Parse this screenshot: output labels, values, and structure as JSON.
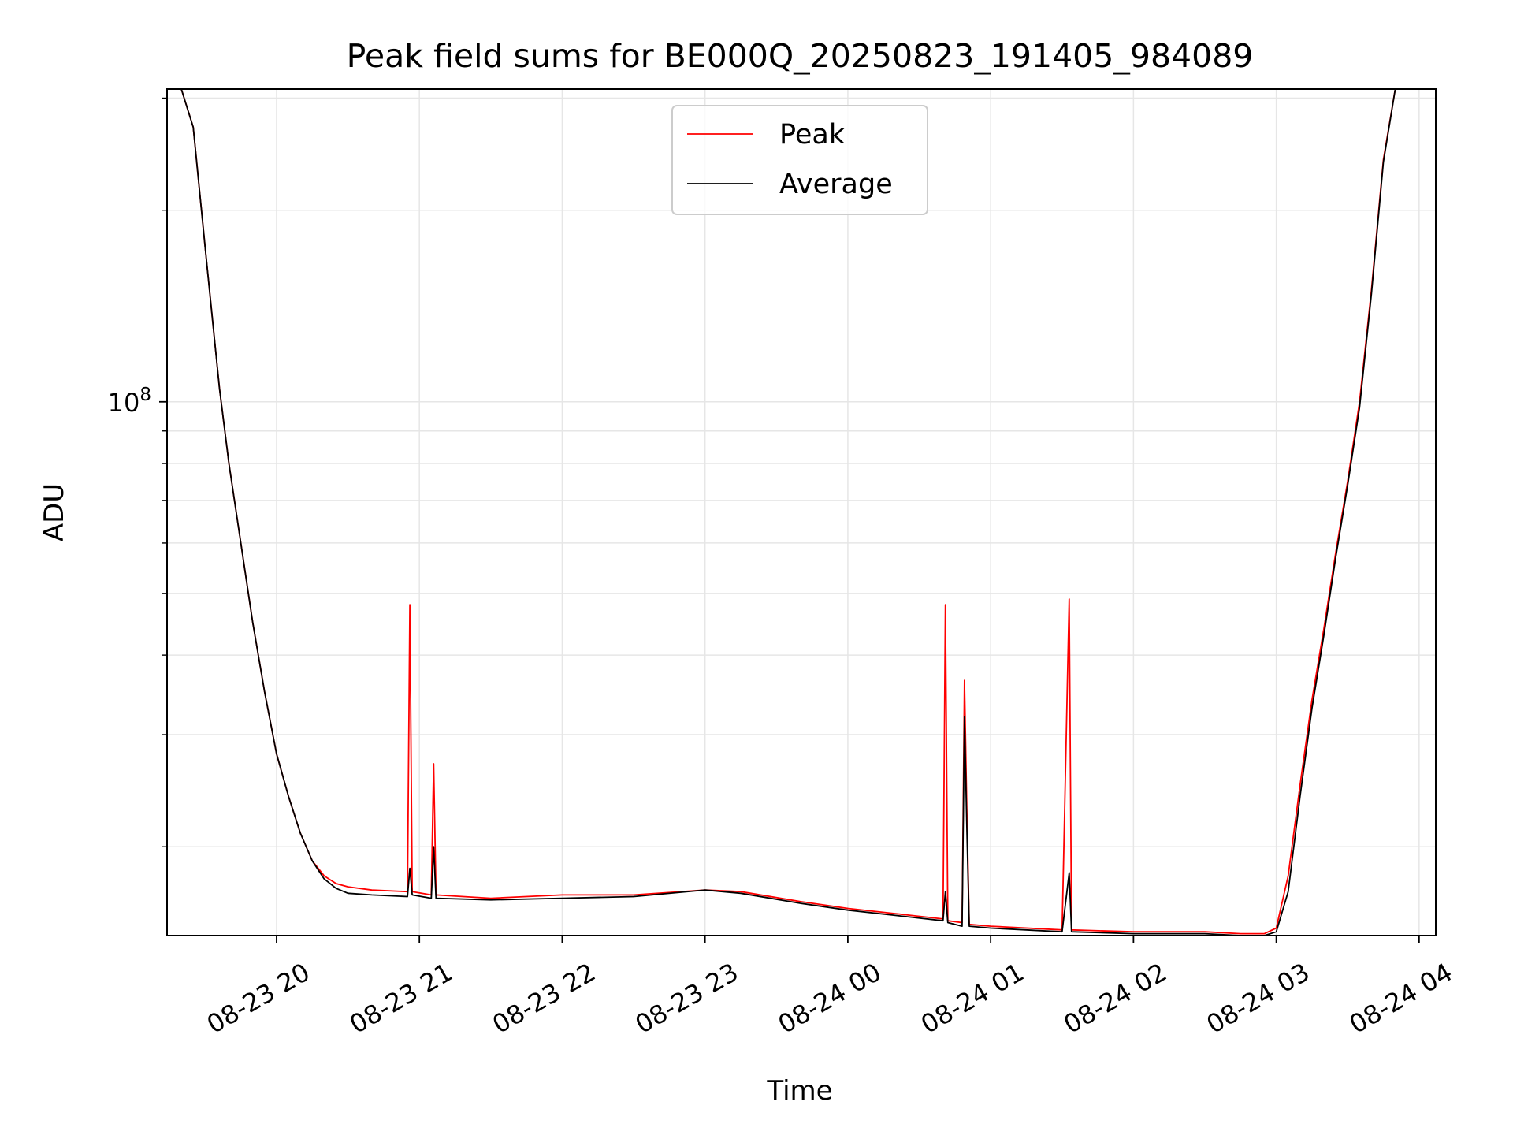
{
  "chart_data": {
    "type": "line",
    "title": "Peak field sums for BE000Q_20250823_191405_984089",
    "xlabel": "Time",
    "ylabel": "ADU",
    "y_scale": "log",
    "ylim": [
      14500000,
      310000000
    ],
    "xlim": [
      "2025-08-23 19:14",
      "2025-08-24 04:07"
    ],
    "grid": true,
    "legend_position": "top-center",
    "x_ticks": [
      "08-23 20",
      "08-23 21",
      "08-23 22",
      "08-23 23",
      "08-24 00",
      "08-24 01",
      "08-24 02",
      "08-24 03",
      "08-24 04"
    ],
    "y_major_ticks": [
      {
        "value": 100000000,
        "base": "10",
        "exp": "8"
      }
    ],
    "series": [
      {
        "name": "Peak",
        "color": "#ff0000",
        "x": [
          "2025-08-23 19:14",
          "2025-08-23 19:20",
          "2025-08-23 19:25",
          "2025-08-23 19:30",
          "2025-08-23 19:36",
          "2025-08-23 19:40",
          "2025-08-23 19:45",
          "2025-08-23 19:50",
          "2025-08-23 19:55",
          "2025-08-23 20:00",
          "2025-08-23 20:05",
          "2025-08-23 20:10",
          "2025-08-23 20:15",
          "2025-08-23 20:20",
          "2025-08-23 20:25",
          "2025-08-23 20:30",
          "2025-08-23 20:40",
          "2025-08-23 20:55",
          "2025-08-23 20:56",
          "2025-08-23 20:57",
          "2025-08-23 21:05",
          "2025-08-23 21:06",
          "2025-08-23 21:07",
          "2025-08-23 21:30",
          "2025-08-23 22:00",
          "2025-08-23 22:30",
          "2025-08-23 23:00",
          "2025-08-23 23:15",
          "2025-08-23 23:40",
          "2025-08-24 00:00",
          "2025-08-24 00:20",
          "2025-08-24 00:40",
          "2025-08-24 00:41",
          "2025-08-24 00:42",
          "2025-08-24 00:48",
          "2025-08-24 00:49",
          "2025-08-24 00:50",
          "2025-08-24 00:51",
          "2025-08-24 01:00",
          "2025-08-24 01:30",
          "2025-08-24 01:33",
          "2025-08-24 01:34",
          "2025-08-24 02:00",
          "2025-08-24 02:30",
          "2025-08-24 02:45",
          "2025-08-24 02:55",
          "2025-08-24 03:00",
          "2025-08-24 03:05",
          "2025-08-24 03:10",
          "2025-08-24 03:15",
          "2025-08-24 03:20",
          "2025-08-24 03:25",
          "2025-08-24 03:30",
          "2025-08-24 03:35",
          "2025-08-24 03:40",
          "2025-08-24 03:45",
          "2025-08-24 03:50",
          "2025-08-24 04:07"
        ],
        "y": [
          310000000,
          310000000,
          270000000,
          175000000,
          105000000,
          80000000,
          60000000,
          45000000,
          35000000,
          28000000,
          24000000,
          21000000,
          19000000,
          18000000,
          17500000,
          17300000,
          17100000,
          17000000,
          48000000,
          17000000,
          16800000,
          27000000,
          16800000,
          16600000,
          16800000,
          16800000,
          17100000,
          17000000,
          16400000,
          16000000,
          15700000,
          15400000,
          48000000,
          15300000,
          15200000,
          36500000,
          23000000,
          15100000,
          15000000,
          14800000,
          49000000,
          14800000,
          14700000,
          14700000,
          14600000,
          14600000,
          14900000,
          18000000,
          25000000,
          34000000,
          44000000,
          58000000,
          75000000,
          100000000,
          150000000,
          240000000,
          310000000,
          310000000
        ]
      },
      {
        "name": "Average",
        "color": "#000000",
        "x": [
          "2025-08-23 19:14",
          "2025-08-23 19:20",
          "2025-08-23 19:25",
          "2025-08-23 19:30",
          "2025-08-23 19:36",
          "2025-08-23 19:40",
          "2025-08-23 19:45",
          "2025-08-23 19:50",
          "2025-08-23 19:55",
          "2025-08-23 20:00",
          "2025-08-23 20:05",
          "2025-08-23 20:10",
          "2025-08-23 20:15",
          "2025-08-23 20:20",
          "2025-08-23 20:25",
          "2025-08-23 20:30",
          "2025-08-23 20:40",
          "2025-08-23 20:55",
          "2025-08-23 20:56",
          "2025-08-23 20:57",
          "2025-08-23 21:05",
          "2025-08-23 21:06",
          "2025-08-23 21:07",
          "2025-08-23 21:30",
          "2025-08-23 22:00",
          "2025-08-23 22:30",
          "2025-08-23 23:00",
          "2025-08-23 23:15",
          "2025-08-23 23:40",
          "2025-08-24 00:00",
          "2025-08-24 00:20",
          "2025-08-24 00:40",
          "2025-08-24 00:41",
          "2025-08-24 00:42",
          "2025-08-24 00:48",
          "2025-08-24 00:49",
          "2025-08-24 00:50",
          "2025-08-24 00:51",
          "2025-08-24 01:00",
          "2025-08-24 01:30",
          "2025-08-24 01:33",
          "2025-08-24 01:34",
          "2025-08-24 02:00",
          "2025-08-24 02:30",
          "2025-08-24 02:45",
          "2025-08-24 02:55",
          "2025-08-24 03:00",
          "2025-08-24 03:05",
          "2025-08-24 03:10",
          "2025-08-24 03:15",
          "2025-08-24 03:20",
          "2025-08-24 03:25",
          "2025-08-24 03:30",
          "2025-08-24 03:35",
          "2025-08-24 03:40",
          "2025-08-24 03:45",
          "2025-08-24 03:50",
          "2025-08-24 04:07"
        ],
        "y": [
          310000000,
          310000000,
          270000000,
          175000000,
          105000000,
          80000000,
          60000000,
          45000000,
          35000000,
          28000000,
          24000000,
          21000000,
          19000000,
          17800000,
          17200000,
          16900000,
          16800000,
          16700000,
          18500000,
          16800000,
          16600000,
          20000000,
          16600000,
          16500000,
          16600000,
          16700000,
          17100000,
          16900000,
          16300000,
          15900000,
          15600000,
          15300000,
          17000000,
          15200000,
          15000000,
          32000000,
          21500000,
          15000000,
          14900000,
          14700000,
          18200000,
          14700000,
          14600000,
          14600000,
          14500000,
          14500000,
          14700000,
          17000000,
          24000000,
          33000000,
          43000000,
          57000000,
          74000000,
          98000000,
          148000000,
          238000000,
          310000000,
          310000000
        ]
      }
    ]
  }
}
